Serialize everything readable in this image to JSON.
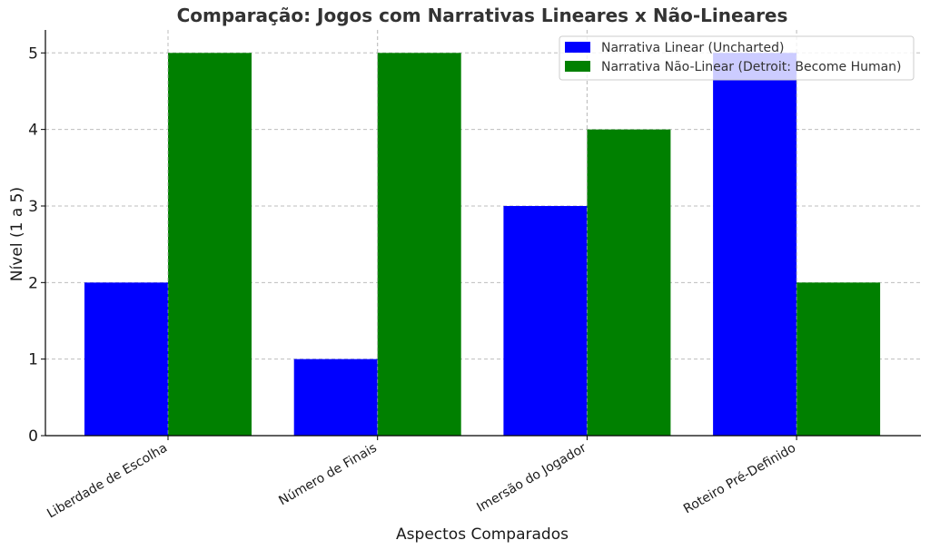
{
  "chart_data": {
    "type": "bar",
    "title": "Comparação: Jogos com Narrativas Lineares x Não-Lineares",
    "xlabel": "Aspectos Comparados",
    "ylabel": "Nível (1 a 5)",
    "categories": [
      "Liberdade de Escolha",
      "Número de Finais",
      "Imersão do Jogador",
      "Roteiro Pré-Definido"
    ],
    "series": [
      {
        "name": "Narrativa Linear (Uncharted)",
        "color": "#0000ff",
        "values": [
          2,
          1,
          3,
          5
        ]
      },
      {
        "name": "Narrativa Não-Linear (Detroit: Become Human)",
        "color": "#008000",
        "values": [
          5,
          5,
          4,
          2
        ]
      }
    ],
    "ylim": [
      0,
      5.3
    ],
    "yticks": [
      0,
      1,
      2,
      3,
      4,
      5
    ],
    "grid": true,
    "legend": "top-right"
  }
}
